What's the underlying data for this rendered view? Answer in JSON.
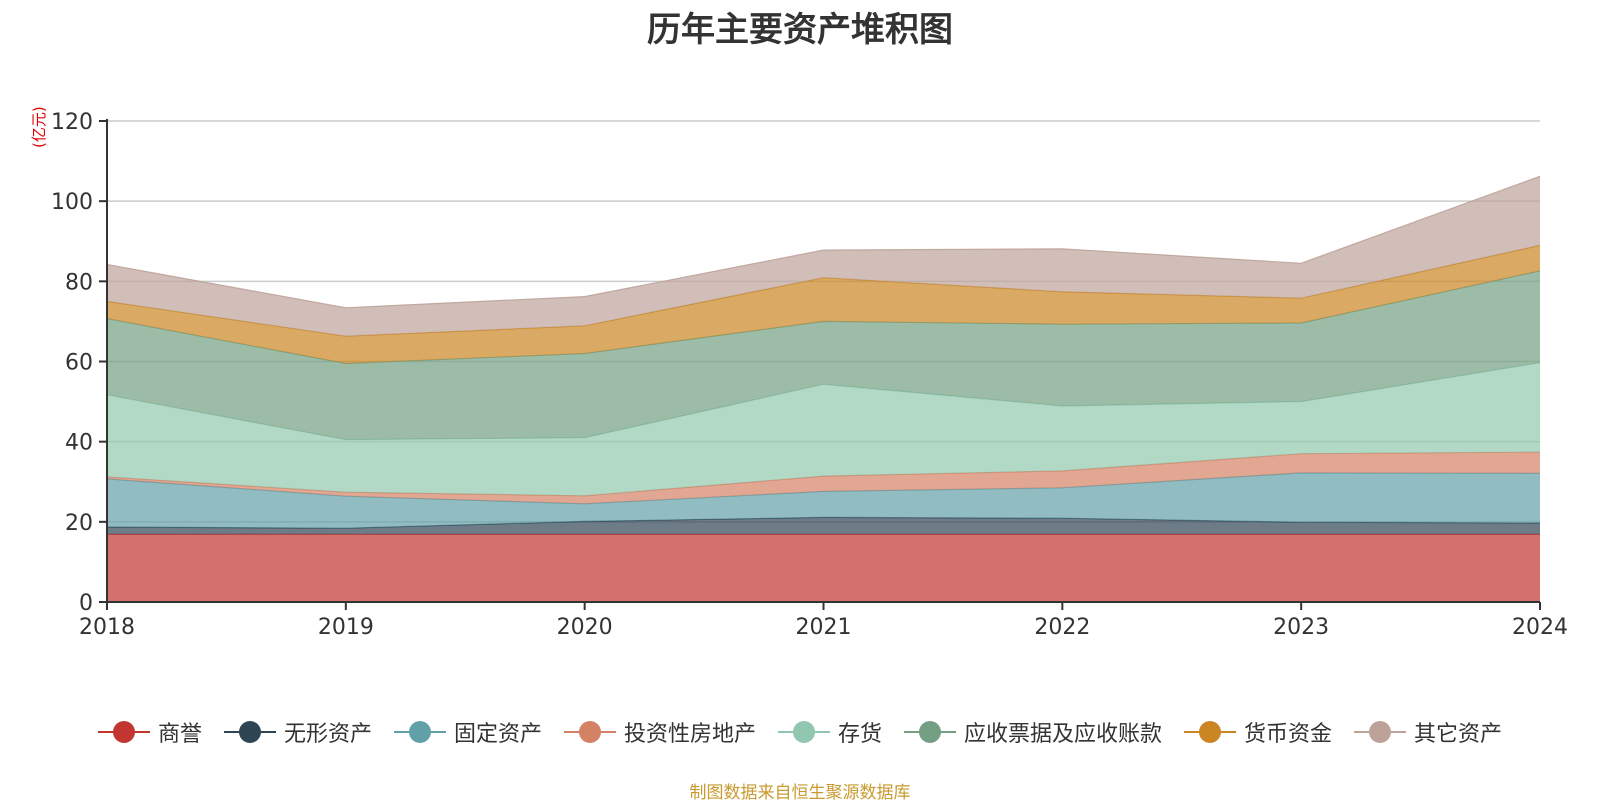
{
  "chart_data": {
    "type": "area",
    "stacked": true,
    "title": "历年主要资产堆积图",
    "unit_label": "(亿元)",
    "source_note": "制图数据来自恒生聚源数据库",
    "x": [
      "2018",
      "2019",
      "2020",
      "2021",
      "2022",
      "2023",
      "2024"
    ],
    "ylim": [
      0,
      120
    ],
    "yticks": [
      0,
      20,
      40,
      60,
      80,
      100,
      120
    ],
    "grid": true,
    "legend_position": "bottom",
    "series": [
      {
        "name": "商誉",
        "color": "#c23531",
        "values": [
          16.9,
          16.9,
          16.9,
          16.9,
          16.9,
          16.9,
          16.9
        ]
      },
      {
        "name": "无形资产",
        "color": "#2f4554",
        "values": [
          1.8,
          1.5,
          3.2,
          4.2,
          4.0,
          3.0,
          2.8
        ]
      },
      {
        "name": "固定资产",
        "color": "#61a0a8",
        "values": [
          12.0,
          8.0,
          4.4,
          6.5,
          7.6,
          12.3,
          12.4
        ]
      },
      {
        "name": "投资性房地产",
        "color": "#d48265",
        "values": [
          0.5,
          1.0,
          2.0,
          3.8,
          4.2,
          4.8,
          5.3
        ]
      },
      {
        "name": "存货",
        "color": "#91c7ae",
        "values": [
          20.5,
          13.1,
          14.5,
          22.9,
          16.2,
          13.0,
          22.3
        ]
      },
      {
        "name": "应收票据及应收账款",
        "color": "#749f83",
        "values": [
          19.0,
          19.0,
          21.0,
          15.7,
          20.4,
          19.6,
          22.9
        ]
      },
      {
        "name": "货币资金",
        "color": "#ca8622",
        "values": [
          4.3,
          6.8,
          6.9,
          10.9,
          8.1,
          6.2,
          6.4
        ]
      },
      {
        "name": "其它资产",
        "color": "#bda29a",
        "values": [
          9.2,
          7.1,
          7.3,
          6.9,
          10.7,
          8.7,
          17.2
        ]
      }
    ]
  }
}
